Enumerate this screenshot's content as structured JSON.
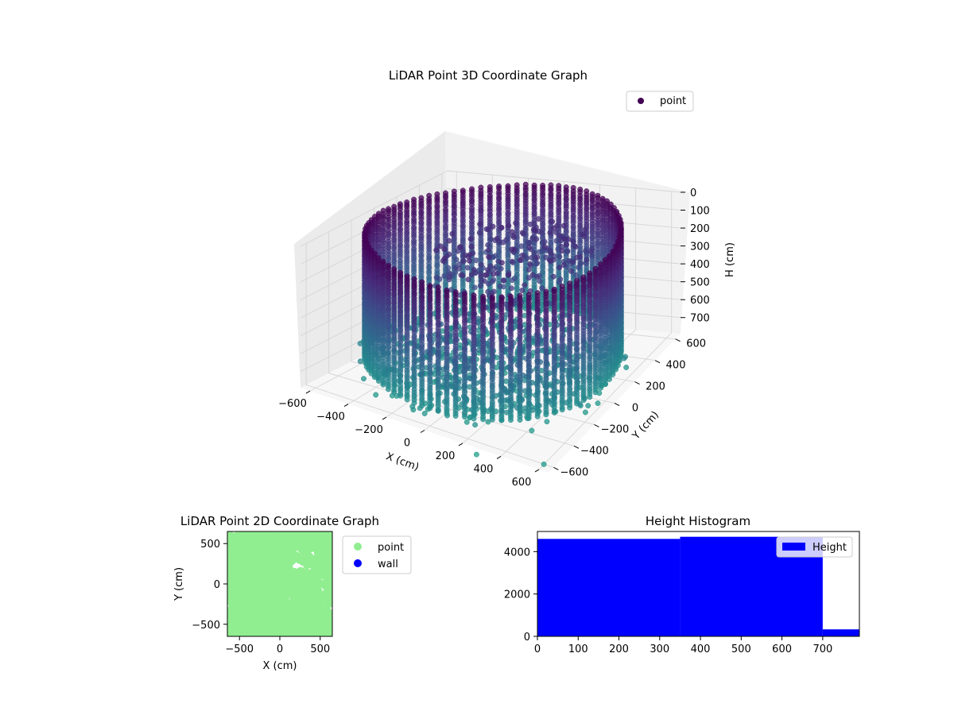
{
  "chart_data": [
    {
      "type": "scatter",
      "projection": "3d",
      "title": "LiDAR Point 3D Coordinate Graph",
      "xlabel": "X (cm)",
      "ylabel": "Y (cm)",
      "zlabel": "H (cm)",
      "xticks": [
        -600,
        -400,
        -200,
        0,
        200,
        400,
        600
      ],
      "yticks": [
        600,
        400,
        200,
        0,
        -200,
        -400,
        -600
      ],
      "zticks": [
        0,
        100,
        200,
        300,
        400,
        500,
        600,
        700
      ],
      "xlim": [
        -650,
        650
      ],
      "ylim": [
        -650,
        650
      ],
      "zlim": [
        0,
        790
      ],
      "zinverted": true,
      "grid": true,
      "legend": {
        "position": "upper-right",
        "entries": [
          {
            "name": "point",
            "color": "#440154"
          }
        ]
      },
      "colormap": "viridis",
      "description": "cylindrical wall ring of radius about 600 cm from H 0 to 700 with interior object points",
      "series": [
        {
          "name": "point",
          "shape": "ring",
          "radius": 600,
          "h_range": [
            0,
            700
          ],
          "interior_clusters": [
            {
              "x": 0,
              "y": 200,
              "h_range": [
                150,
                350
              ]
            },
            {
              "x": 100,
              "y": -150,
              "h_range": [
                450,
                750
              ]
            }
          ],
          "outliers": [
            {
              "x": -640,
              "y": 380,
              "h": 760
            },
            {
              "x": 620,
              "y": -640,
              "h": 760
            },
            {
              "x": -600,
              "y": 0,
              "h": 790
            },
            {
              "x": 300,
              "y": -700,
              "h": 790
            }
          ]
        }
      ]
    },
    {
      "type": "scatter",
      "title": "LiDAR Point 2D Coordinate Graph",
      "xlabel": "X (cm)",
      "ylabel": "Y (cm)",
      "xticks": [
        -500,
        0,
        500
      ],
      "yticks": [
        500,
        0,
        -500
      ],
      "xlim": [
        -650,
        650
      ],
      "ylim": [
        -650,
        650
      ],
      "legend": {
        "position": "outside-right",
        "entries": [
          {
            "name": "point",
            "color": "#90ee90"
          },
          {
            "name": "wall",
            "color": "#0000ff"
          }
        ]
      },
      "description": "dense light green filled blob covering most of the square area",
      "series": [
        {
          "name": "point",
          "color": "#90ee90",
          "coverage": "most of the plot area"
        },
        {
          "name": "wall",
          "color": "#0000ff",
          "values": []
        }
      ]
    },
    {
      "type": "bar",
      "title": "Height Histogram",
      "xticks": [
        0,
        100,
        200,
        300,
        400,
        500,
        600,
        700
      ],
      "yticks": [
        0,
        2000,
        4000
      ],
      "xlim": [
        0,
        790
      ],
      "ylim": [
        0,
        4950
      ],
      "legend": {
        "position": "upper-right",
        "entries": [
          {
            "name": "Height",
            "color": "#0000ff"
          }
        ]
      },
      "bins": [
        {
          "start": 0,
          "end": 350,
          "count": 4600
        },
        {
          "start": 350,
          "end": 700,
          "count": 4700
        },
        {
          "start": 700,
          "end": 790,
          "count": 330
        }
      ],
      "color": "#0000ff"
    }
  ]
}
